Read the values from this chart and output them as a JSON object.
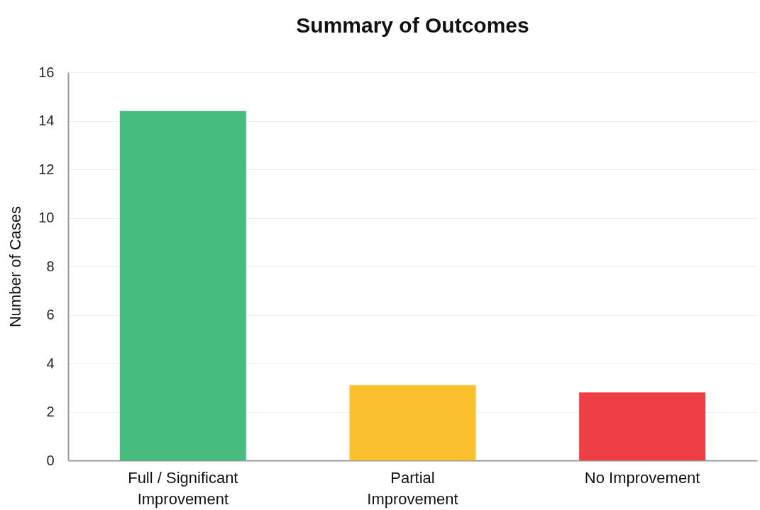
{
  "chart_data": {
    "type": "bar",
    "title": "Summary of Outcomes",
    "ylabel": "Number of Cases",
    "categories": [
      "Full / Significant Improvement",
      "Partial Improvement",
      "No Improvement"
    ],
    "values": [
      14.4,
      3.1,
      2.8
    ],
    "colors": [
      "#46bd7e",
      "#fbc02d",
      "#ef3e46"
    ],
    "ylim": [
      0,
      16
    ],
    "yticks": [
      0,
      2,
      4,
      6,
      8,
      10,
      12,
      14,
      16
    ],
    "grid": "y"
  }
}
